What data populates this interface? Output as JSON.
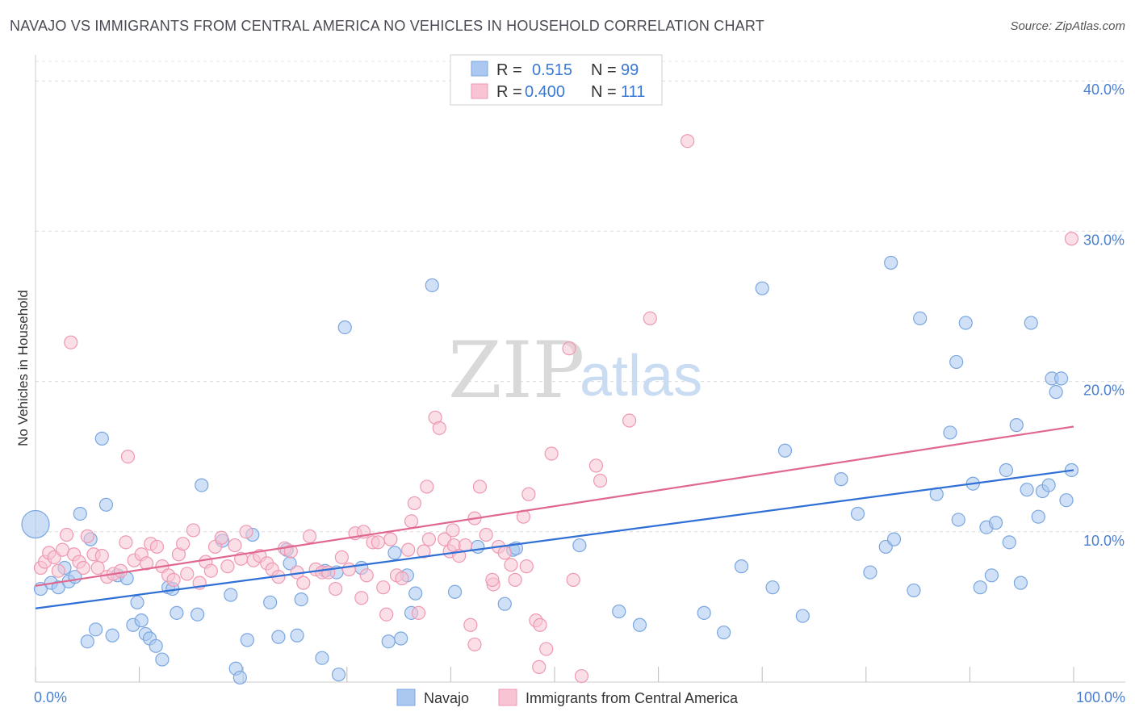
{
  "title": "NAVAJO VS IMMIGRANTS FROM CENTRAL AMERICA NO VEHICLES IN HOUSEHOLD CORRELATION CHART",
  "source": "Source: ZipAtlas.com",
  "watermark": {
    "zip": "ZIP",
    "atlas": "atlas"
  },
  "legend": {
    "rows": [
      {
        "r_label": "R =",
        "r_value": "0.515",
        "n_label": "N =",
        "n_value": "99",
        "color": "#aac8f0",
        "stroke": "#7aa6e0"
      },
      {
        "r_label": "R =",
        "r_value": "0.400",
        "n_label": "N =",
        "n_value": "111",
        "color": "#f8c4d4",
        "stroke": "#ee98b2"
      }
    ]
  },
  "bottom_legend": [
    {
      "label": "Navajo",
      "color": "#aac8f0",
      "stroke": "#7aa6e0"
    },
    {
      "label": "Immigrants from Central America",
      "color": "#f8c4d4",
      "stroke": "#ee98b2"
    }
  ],
  "chart_data": {
    "type": "scatter",
    "ylabel": "No Vehicles in Household",
    "xlabel": "",
    "xlim": [
      0,
      100
    ],
    "ylim": [
      0,
      42
    ],
    "y_ticks": [
      {
        "value": 10,
        "label": "10.0%"
      },
      {
        "value": 20,
        "label": "20.0%"
      },
      {
        "value": 30,
        "label": "30.0%"
      },
      {
        "value": 40,
        "label": "40.0%"
      }
    ],
    "x_tick_labels": [
      {
        "value": 0,
        "label": "0.0%"
      },
      {
        "value": 100,
        "label": "100.0%"
      }
    ],
    "x_minor_ticks": [
      0,
      10,
      20,
      30,
      40,
      50,
      60,
      70,
      80,
      90,
      100
    ],
    "grid": true,
    "series": [
      {
        "name": "Navajo",
        "color": "#aac8f0",
        "stroke": "#7aa6e0",
        "line_color": "#2f6fd6",
        "trend": [
          [
            0,
            4.9
          ],
          [
            100,
            14.1
          ]
        ],
        "points": [
          [
            0.5,
            6.2
          ],
          [
            1.5,
            6.6
          ],
          [
            2.2,
            6.3
          ],
          [
            2.8,
            7.6
          ],
          [
            3.2,
            6.7
          ],
          [
            3.8,
            7.0
          ],
          [
            4.3,
            11.2
          ],
          [
            5.0,
            2.7
          ],
          [
            5.3,
            9.5
          ],
          [
            5.8,
            3.5
          ],
          [
            6.4,
            16.2
          ],
          [
            6.8,
            11.8
          ],
          [
            7.4,
            3.1
          ],
          [
            7.9,
            7.1
          ],
          [
            8.8,
            6.9
          ],
          [
            9.4,
            3.8
          ],
          [
            9.8,
            5.3
          ],
          [
            10.2,
            4.1
          ],
          [
            10.6,
            3.2
          ],
          [
            11.0,
            2.9
          ],
          [
            11.6,
            2.4
          ],
          [
            12.2,
            1.5
          ],
          [
            12.8,
            6.3
          ],
          [
            13.2,
            6.2
          ],
          [
            13.6,
            4.6
          ],
          [
            15.6,
            4.5
          ],
          [
            16.0,
            13.1
          ],
          [
            18.0,
            9.4
          ],
          [
            18.8,
            5.8
          ],
          [
            19.3,
            0.9
          ],
          [
            19.7,
            0.3
          ],
          [
            20.4,
            2.8
          ],
          [
            20.9,
            9.8
          ],
          [
            22.6,
            5.3
          ],
          [
            23.4,
            3.0
          ],
          [
            24.2,
            8.8
          ],
          [
            24.5,
            7.9
          ],
          [
            25.2,
            3.1
          ],
          [
            25.6,
            5.5
          ],
          [
            27.6,
            1.6
          ],
          [
            27.9,
            7.4
          ],
          [
            29.0,
            7.3
          ],
          [
            29.2,
            0.5
          ],
          [
            29.8,
            23.6
          ],
          [
            31.4,
            7.6
          ],
          [
            34.0,
            2.7
          ],
          [
            34.6,
            8.6
          ],
          [
            35.2,
            2.9
          ],
          [
            35.8,
            7.1
          ],
          [
            36.2,
            4.6
          ],
          [
            36.6,
            5.9
          ],
          [
            38.2,
            26.4
          ],
          [
            40.4,
            6.0
          ],
          [
            42.6,
            9.0
          ],
          [
            45.2,
            5.2
          ],
          [
            46.0,
            8.8
          ],
          [
            46.3,
            8.9
          ],
          [
            52.4,
            9.1
          ],
          [
            56.2,
            4.7
          ],
          [
            58.2,
            3.8
          ],
          [
            64.4,
            4.6
          ],
          [
            66.3,
            3.3
          ],
          [
            68.0,
            7.7
          ],
          [
            70.0,
            26.2
          ],
          [
            71.0,
            6.3
          ],
          [
            72.2,
            15.4
          ],
          [
            73.9,
            4.4
          ],
          [
            77.6,
            13.5
          ],
          [
            79.2,
            11.2
          ],
          [
            80.4,
            7.3
          ],
          [
            81.9,
            9.0
          ],
          [
            82.4,
            27.9
          ],
          [
            82.7,
            9.5
          ],
          [
            84.6,
            6.1
          ],
          [
            85.2,
            24.2
          ],
          [
            86.8,
            12.5
          ],
          [
            88.1,
            16.6
          ],
          [
            88.7,
            21.3
          ],
          [
            88.9,
            10.8
          ],
          [
            89.6,
            23.9
          ],
          [
            90.3,
            13.2
          ],
          [
            91.0,
            6.3
          ],
          [
            91.6,
            10.3
          ],
          [
            92.1,
            7.1
          ],
          [
            92.5,
            10.6
          ],
          [
            93.5,
            14.1
          ],
          [
            93.8,
            9.3
          ],
          [
            94.5,
            17.1
          ],
          [
            94.9,
            6.6
          ],
          [
            95.5,
            12.8
          ],
          [
            95.9,
            23.9
          ],
          [
            96.6,
            11.0
          ],
          [
            97.0,
            12.7
          ],
          [
            97.6,
            13.1
          ],
          [
            97.9,
            20.2
          ],
          [
            98.3,
            19.3
          ],
          [
            98.8,
            20.2
          ],
          [
            99.3,
            12.1
          ],
          [
            99.8,
            14.1
          ]
        ]
      },
      {
        "name": "Immigrants from Central America",
        "color": "#f8c4d4",
        "stroke": "#ee98b2",
        "line_color": "#e06890",
        "trend": [
          [
            0,
            6.4
          ],
          [
            100,
            17.0
          ]
        ],
        "points": [
          [
            0.5,
            7.6
          ],
          [
            0.9,
            8.0
          ],
          [
            1.3,
            8.6
          ],
          [
            1.8,
            8.3
          ],
          [
            2.2,
            7.4
          ],
          [
            2.6,
            8.8
          ],
          [
            3.0,
            9.8
          ],
          [
            3.4,
            22.6
          ],
          [
            3.7,
            8.5
          ],
          [
            4.2,
            8.0
          ],
          [
            4.6,
            7.6
          ],
          [
            5.0,
            9.7
          ],
          [
            5.6,
            8.5
          ],
          [
            6.0,
            7.6
          ],
          [
            6.4,
            8.4
          ],
          [
            6.9,
            7.0
          ],
          [
            7.5,
            7.2
          ],
          [
            8.2,
            7.4
          ],
          [
            8.7,
            9.3
          ],
          [
            8.9,
            15.0
          ],
          [
            9.5,
            8.1
          ],
          [
            10.2,
            8.5
          ],
          [
            10.7,
            7.9
          ],
          [
            11.1,
            9.2
          ],
          [
            11.7,
            9.0
          ],
          [
            12.2,
            7.7
          ],
          [
            12.8,
            7.1
          ],
          [
            13.3,
            6.8
          ],
          [
            13.8,
            8.5
          ],
          [
            14.2,
            9.2
          ],
          [
            14.6,
            7.2
          ],
          [
            15.2,
            10.1
          ],
          [
            15.8,
            6.6
          ],
          [
            16.4,
            8.0
          ],
          [
            16.9,
            7.4
          ],
          [
            17.3,
            9.0
          ],
          [
            17.9,
            9.6
          ],
          [
            18.5,
            7.7
          ],
          [
            19.2,
            9.1
          ],
          [
            19.8,
            8.2
          ],
          [
            20.3,
            10.0
          ],
          [
            21.0,
            8.1
          ],
          [
            21.6,
            8.4
          ],
          [
            22.3,
            7.9
          ],
          [
            22.8,
            7.5
          ],
          [
            23.4,
            7.0
          ],
          [
            24.0,
            8.9
          ],
          [
            24.6,
            8.7
          ],
          [
            25.2,
            7.3
          ],
          [
            25.8,
            6.6
          ],
          [
            26.4,
            9.7
          ],
          [
            27.0,
            7.5
          ],
          [
            27.6,
            7.3
          ],
          [
            28.2,
            7.3
          ],
          [
            28.9,
            6.2
          ],
          [
            29.5,
            8.3
          ],
          [
            30.2,
            7.5
          ],
          [
            30.8,
            9.9
          ],
          [
            31.4,
            5.6
          ],
          [
            31.9,
            7.1
          ],
          [
            32.5,
            9.3
          ],
          [
            33.0,
            9.3
          ],
          [
            33.5,
            6.3
          ],
          [
            34.2,
            9.5
          ],
          [
            34.8,
            7.1
          ],
          [
            35.3,
            6.9
          ],
          [
            35.9,
            8.8
          ],
          [
            36.5,
            11.9
          ],
          [
            36.9,
            4.6
          ],
          [
            37.4,
            8.7
          ],
          [
            37.9,
            9.5
          ],
          [
            38.5,
            17.6
          ],
          [
            38.9,
            16.9
          ],
          [
            39.4,
            9.5
          ],
          [
            39.9,
            8.7
          ],
          [
            40.3,
            9.1
          ],
          [
            40.8,
            8.4
          ],
          [
            41.4,
            9.1
          ],
          [
            41.9,
            3.8
          ],
          [
            42.3,
            2.5
          ],
          [
            42.8,
            13.0
          ],
          [
            43.4,
            9.8
          ],
          [
            44.1,
            6.5
          ],
          [
            44.6,
            9.0
          ],
          [
            45.2,
            8.6
          ],
          [
            45.8,
            7.8
          ],
          [
            46.2,
            6.8
          ],
          [
            47.0,
            11.0
          ],
          [
            47.5,
            12.5
          ],
          [
            48.2,
            4.1
          ],
          [
            48.6,
            3.8
          ],
          [
            49.2,
            2.2
          ],
          [
            49.7,
            15.2
          ],
          [
            51.4,
            22.2
          ],
          [
            51.8,
            6.8
          ],
          [
            54.0,
            14.4
          ],
          [
            54.4,
            13.4
          ],
          [
            57.2,
            17.4
          ],
          [
            59.2,
            24.2
          ],
          [
            62.8,
            36.0
          ],
          [
            31.6,
            10.0
          ],
          [
            33.8,
            4.5
          ],
          [
            36.2,
            10.7
          ],
          [
            37.7,
            13.0
          ],
          [
            40.2,
            10.1
          ],
          [
            42.3,
            10.9
          ],
          [
            44.0,
            6.8
          ],
          [
            47.3,
            7.7
          ],
          [
            48.5,
            1.0
          ],
          [
            52.6,
            0.4
          ],
          [
            99.8,
            29.5
          ]
        ]
      }
    ]
  }
}
